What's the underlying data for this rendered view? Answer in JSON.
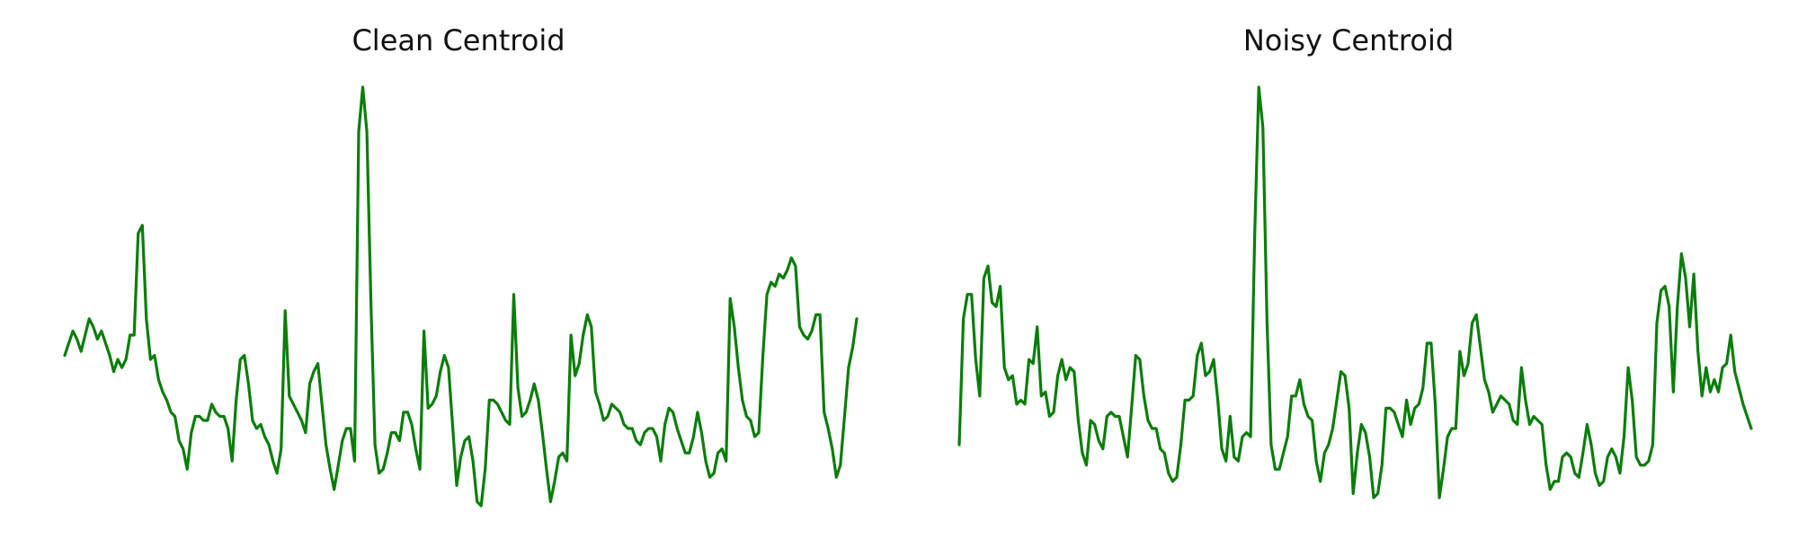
{
  "colors": {
    "line": "#0a7d0a",
    "background": "#ffffff",
    "title": "#111111"
  },
  "chart_data": [
    {
      "type": "line",
      "title": "Clean Centroid",
      "xlabel": "",
      "ylabel": "",
      "axes_visible": false,
      "grid": false,
      "series": [
        {
          "values": [
            0.3,
            0.33,
            0.36,
            0.34,
            0.31,
            0.35,
            0.39,
            0.37,
            0.34,
            0.36,
            0.33,
            0.3,
            0.26,
            0.29,
            0.27,
            0.29,
            0.35,
            0.35,
            0.6,
            0.62,
            0.39,
            0.29,
            0.3,
            0.24,
            0.21,
            0.19,
            0.16,
            0.15,
            0.09,
            0.07,
            0.02,
            0.11,
            0.15,
            0.15,
            0.14,
            0.14,
            0.18,
            0.16,
            0.15,
            0.15,
            0.12,
            0.04,
            0.19,
            0.29,
            0.3,
            0.23,
            0.14,
            0.12,
            0.13,
            0.1,
            0.08,
            0.04,
            0.01,
            0.07,
            0.41,
            0.2,
            0.18,
            0.16,
            0.14,
            0.11,
            0.23,
            0.26,
            0.28,
            0.18,
            0.08,
            0.02,
            -0.03,
            0.03,
            0.09,
            0.12,
            0.12,
            0.04,
            0.85,
            0.96,
            0.85,
            0.43,
            0.08,
            0.01,
            0.02,
            0.06,
            0.11,
            0.11,
            0.09,
            0.16,
            0.16,
            0.13,
            0.07,
            0.02,
            0.36,
            0.17,
            0.18,
            0.2,
            0.26,
            0.3,
            0.27,
            0.13,
            -0.02,
            0.05,
            0.09,
            0.1,
            0.04,
            -0.06,
            -0.07,
            0.02,
            0.19,
            0.19,
            0.18,
            0.16,
            0.14,
            0.13,
            0.45,
            0.22,
            0.15,
            0.16,
            0.19,
            0.23,
            0.19,
            0.11,
            0.02,
            -0.06,
            -0.01,
            0.05,
            0.06,
            0.04,
            0.35,
            0.25,
            0.28,
            0.35,
            0.4,
            0.37,
            0.21,
            0.18,
            0.14,
            0.15,
            0.18,
            0.17,
            0.16,
            0.13,
            0.12,
            0.12,
            0.09,
            0.08,
            0.11,
            0.12,
            0.12,
            0.1,
            0.04,
            0.13,
            0.17,
            0.16,
            0.12,
            0.09,
            0.06,
            0.06,
            0.1,
            0.16,
            0.11,
            0.04,
            0.0,
            0.01,
            0.06,
            0.07,
            0.04,
            0.44,
            0.37,
            0.27,
            0.19,
            0.15,
            0.14,
            0.1,
            0.11,
            0.3,
            0.45,
            0.48,
            0.47,
            0.5,
            0.49,
            0.51,
            0.54,
            0.52,
            0.37,
            0.35,
            0.34,
            0.36,
            0.4,
            0.4,
            0.16,
            0.12,
            0.07,
            0.0,
            0.03,
            0.15,
            0.27,
            0.32,
            0.39
          ]
        }
      ]
    },
    {
      "type": "line",
      "title": "Noisy Centroid",
      "xlabel": "",
      "ylabel": "",
      "axes_visible": false,
      "grid": false,
      "series": [
        {
          "values": [
            0.08,
            0.39,
            0.45,
            0.45,
            0.29,
            0.2,
            0.49,
            0.52,
            0.43,
            0.42,
            0.47,
            0.27,
            0.24,
            0.25,
            0.18,
            0.19,
            0.18,
            0.29,
            0.28,
            0.37,
            0.2,
            0.21,
            0.15,
            0.16,
            0.25,
            0.29,
            0.24,
            0.27,
            0.26,
            0.14,
            0.06,
            0.03,
            0.14,
            0.13,
            0.09,
            0.07,
            0.15,
            0.16,
            0.15,
            0.15,
            0.1,
            0.05,
            0.17,
            0.3,
            0.29,
            0.2,
            0.14,
            0.12,
            0.12,
            0.07,
            0.06,
            0.01,
            -0.01,
            0.0,
            0.08,
            0.19,
            0.19,
            0.2,
            0.3,
            0.33,
            0.25,
            0.26,
            0.29,
            0.19,
            0.07,
            0.04,
            0.15,
            0.05,
            0.04,
            0.1,
            0.11,
            0.1,
            0.6,
            0.96,
            0.86,
            0.38,
            0.08,
            0.02,
            0.02,
            0.06,
            0.1,
            0.2,
            0.2,
            0.24,
            0.18,
            0.15,
            0.14,
            0.04,
            -0.01,
            0.06,
            0.08,
            0.12,
            0.19,
            0.26,
            0.25,
            0.17,
            -0.04,
            0.06,
            0.13,
            0.11,
            0.05,
            -0.05,
            -0.04,
            0.03,
            0.17,
            0.17,
            0.16,
            0.13,
            0.1,
            0.19,
            0.13,
            0.17,
            0.18,
            0.22,
            0.33,
            0.33,
            0.18,
            -0.05,
            0.02,
            0.1,
            0.12,
            0.12,
            0.31,
            0.25,
            0.28,
            0.38,
            0.4,
            0.32,
            0.24,
            0.21,
            0.16,
            0.18,
            0.2,
            0.19,
            0.18,
            0.14,
            0.13,
            0.27,
            0.19,
            0.13,
            0.15,
            0.14,
            0.13,
            0.03,
            -0.03,
            -0.01,
            -0.01,
            0.05,
            0.06,
            0.05,
            0.01,
            0.0,
            0.06,
            0.13,
            0.08,
            0.01,
            -0.02,
            -0.01,
            0.05,
            0.07,
            0.05,
            0.01,
            0.1,
            0.27,
            0.19,
            0.05,
            0.03,
            0.03,
            0.04,
            0.08,
            0.38,
            0.46,
            0.47,
            0.42,
            0.21,
            0.42,
            0.55,
            0.49,
            0.37,
            0.5,
            0.31,
            0.2,
            0.27,
            0.21,
            0.24,
            0.21,
            0.27,
            0.28,
            0.35,
            0.26,
            0.22,
            0.18,
            0.15,
            0.12
          ]
        }
      ]
    }
  ]
}
